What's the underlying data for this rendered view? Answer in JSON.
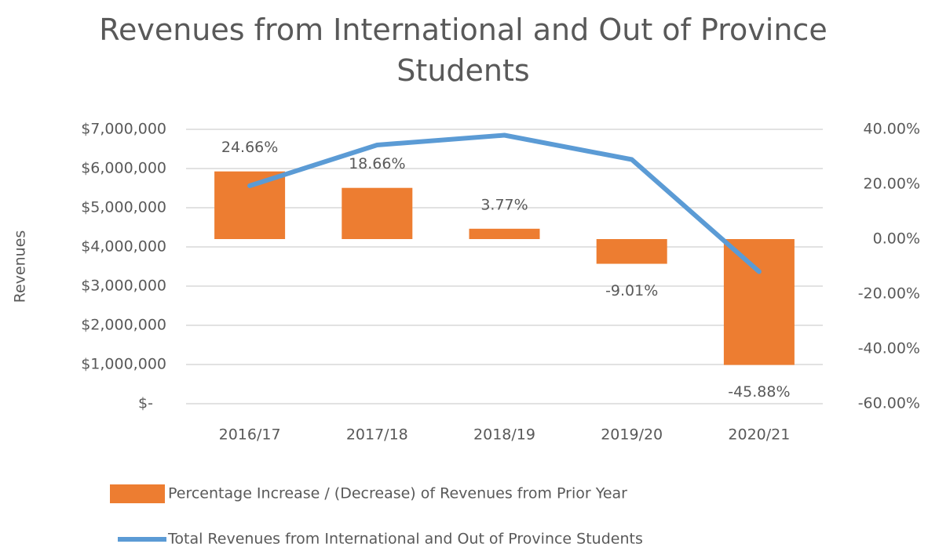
{
  "chart_data": {
    "type": "combo",
    "title": "Revenues from International and Out of Province Students",
    "ylabel": "Revenues",
    "categories": [
      "2016/17",
      "2017/18",
      "2018/19",
      "2019/20",
      "2020/21"
    ],
    "series": [
      {
        "name": "Percentage Increase / (Decrease) of Revenues from Prior Year",
        "type": "bar",
        "axis": "y2",
        "color": "#ed7d31",
        "values": [
          24.66,
          18.66,
          3.77,
          -9.01,
          -45.88
        ],
        "value_labels": [
          "24.66%",
          "18.66%",
          "3.77%",
          "-9.01%",
          "-45.88%"
        ]
      },
      {
        "name": "Total Revenues from International and Out of Province Students",
        "type": "line",
        "axis": "y",
        "color": "#5b9bd5",
        "values": [
          5560000,
          6600000,
          6850000,
          6230000,
          3370000
        ]
      }
    ],
    "ylim": [
      0,
      7000000
    ],
    "yticks": [
      {
        "value": 0,
        "label": "$-"
      },
      {
        "value": 1000000,
        "label": "$1,000,000"
      },
      {
        "value": 2000000,
        "label": "$2,000,000"
      },
      {
        "value": 3000000,
        "label": "$3,000,000"
      },
      {
        "value": 4000000,
        "label": "$4,000,000"
      },
      {
        "value": 5000000,
        "label": "$5,000,000"
      },
      {
        "value": 6000000,
        "label": "$6,000,000"
      },
      {
        "value": 7000000,
        "label": "$7,000,000"
      }
    ],
    "y2lim": [
      -60,
      40
    ],
    "y2ticks": [
      {
        "value": -60,
        "label": "-60.00%"
      },
      {
        "value": -40,
        "label": "-40.00%"
      },
      {
        "value": -20,
        "label": "-20.00%"
      },
      {
        "value": 0,
        "label": "0.00%"
      },
      {
        "value": 20,
        "label": "20.00%"
      },
      {
        "value": 40,
        "label": "40.00%"
      }
    ],
    "grid": true
  }
}
